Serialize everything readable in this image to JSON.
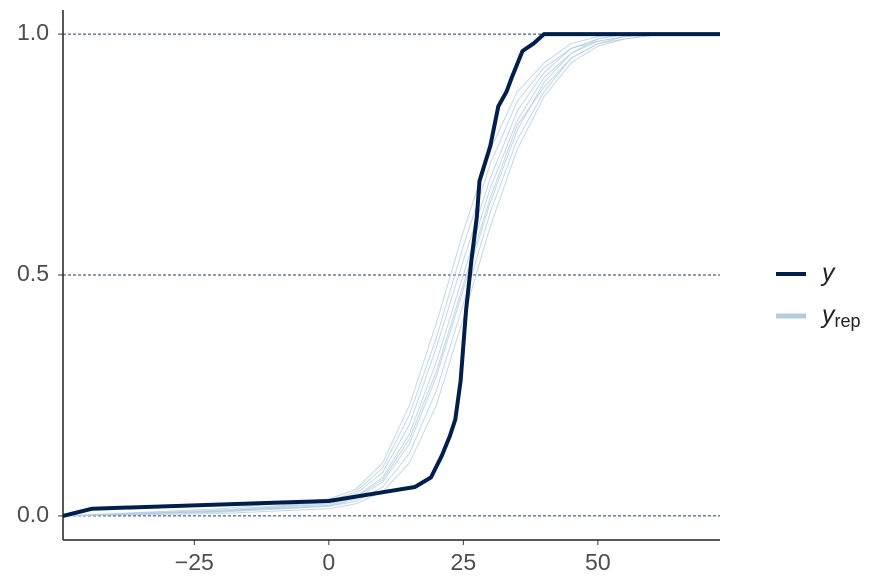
{
  "chart_data": {
    "type": "ecdf_overlay",
    "xlim": [
      -49.4,
      72.7
    ],
    "ylim": [
      -0.05,
      1.05
    ],
    "xticks": [
      {
        "value": -25,
        "label": "−25"
      },
      0,
      25,
      50
    ],
    "yticks": [
      {
        "value": 0,
        "label": "0.0"
      },
      {
        "value": 0.5,
        "label": "0.5"
      },
      {
        "value": 1,
        "label": "1.0"
      }
    ],
    "grid": true,
    "legend": "right",
    "series": [
      {
        "name": "y",
        "color": "#011f4b",
        "x": [
          -49.4,
          -44,
          0,
          16,
          19,
          21,
          22.5,
          23.5,
          24.5,
          25.5,
          26.5,
          27.5,
          28,
          30,
          31.5,
          33,
          34,
          36,
          38,
          40,
          72.7
        ],
        "values": [
          0,
          0.015,
          0.031,
          0.06,
          0.08,
          0.125,
          0.166,
          0.2,
          0.28,
          0.425,
          0.53,
          0.62,
          0.695,
          0.767,
          0.85,
          0.88,
          0.91,
          0.965,
          0.98,
          1,
          1
        ]
      },
      {
        "name": "y",
        "name_subscript": "rep",
        "color": "#b3cde0",
        "x": [
          -49.4,
          -20,
          0,
          5,
          10,
          15,
          20,
          25,
          30,
          35,
          40,
          45,
          50,
          55,
          62,
          72.7
        ],
        "draws": [
          [
            0,
            0.01,
            0.025,
            0.04,
            0.08,
            0.17,
            0.32,
            0.5,
            0.68,
            0.82,
            0.91,
            0.96,
            0.985,
            0.995,
            1,
            1
          ],
          [
            0,
            0.01,
            0.02,
            0.03,
            0.06,
            0.13,
            0.26,
            0.44,
            0.63,
            0.78,
            0.88,
            0.95,
            0.98,
            0.995,
            1,
            1
          ],
          [
            0,
            0.012,
            0.03,
            0.05,
            0.1,
            0.21,
            0.37,
            0.56,
            0.73,
            0.86,
            0.93,
            0.97,
            0.99,
            1,
            1,
            1
          ],
          [
            0,
            0.008,
            0.02,
            0.035,
            0.07,
            0.15,
            0.29,
            0.47,
            0.65,
            0.8,
            0.9,
            0.96,
            0.99,
            1,
            1,
            1
          ],
          [
            0,
            0.01,
            0.028,
            0.045,
            0.09,
            0.19,
            0.35,
            0.53,
            0.7,
            0.84,
            0.92,
            0.97,
            0.985,
            0.995,
            1,
            1
          ],
          [
            0,
            0.005,
            0.015,
            0.025,
            0.05,
            0.11,
            0.23,
            0.41,
            0.6,
            0.76,
            0.87,
            0.94,
            0.975,
            0.99,
            1,
            1
          ],
          [
            0,
            0.015,
            0.035,
            0.055,
            0.11,
            0.23,
            0.4,
            0.59,
            0.76,
            0.88,
            0.94,
            0.98,
            0.995,
            1,
            1,
            1
          ],
          [
            0,
            0.01,
            0.022,
            0.038,
            0.075,
            0.16,
            0.3,
            0.48,
            0.66,
            0.81,
            0.89,
            0.95,
            0.98,
            0.99,
            1,
            1
          ]
        ]
      }
    ]
  }
}
